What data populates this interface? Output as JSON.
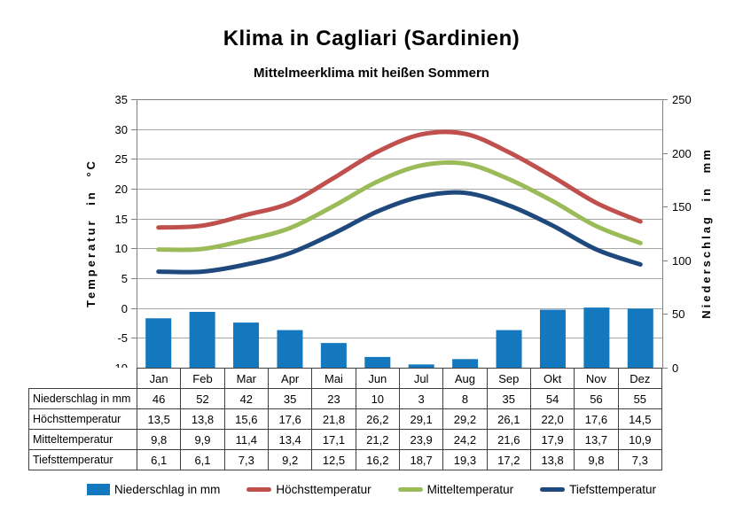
{
  "title": "Klima in Cagliari (Sardinien)",
  "subtitle": "Mittelmeerklima mit heißen Sommern",
  "axes": {
    "left_label": "Temperatur in °C",
    "right_label": "Niederschlag in mm",
    "left_ticks": [
      35,
      30,
      25,
      20,
      15,
      10,
      5,
      0,
      -5,
      -10
    ],
    "right_ticks": [
      250,
      200,
      150,
      100,
      50,
      0
    ]
  },
  "chart_data": {
    "type": "bar+line",
    "title": "Klima in Cagliari (Sardinien)",
    "subtitle": "Mittelmeerklima mit heißen Sommern",
    "categories": [
      "Jan",
      "Feb",
      "Mar",
      "Apr",
      "Mai",
      "Jun",
      "Jul",
      "Aug",
      "Sep",
      "Okt",
      "Nov",
      "Dez"
    ],
    "bar_series": {
      "name": "Niederschlag in mm",
      "axis": "right",
      "color": "#1478BE",
      "values": [
        46,
        52,
        42,
        35,
        23,
        10,
        3,
        8,
        35,
        54,
        56,
        55
      ]
    },
    "line_series": [
      {
        "name": "Höchsttemperatur",
        "color": "#C0504D",
        "values": [
          13.5,
          13.8,
          15.6,
          17.6,
          21.8,
          26.2,
          29.1,
          29.2,
          26.1,
          22.0,
          17.6,
          14.5
        ]
      },
      {
        "name": "Mitteltemperatur",
        "color": "#9BBB59",
        "values": [
          9.8,
          9.9,
          11.4,
          13.4,
          17.1,
          21.2,
          23.9,
          24.2,
          21.6,
          17.9,
          13.7,
          10.9
        ]
      },
      {
        "name": "Tiefsttemperatur",
        "color": "#1F497D",
        "values": [
          6.1,
          6.1,
          7.3,
          9.2,
          12.5,
          16.2,
          18.7,
          19.3,
          17.2,
          13.8,
          9.8,
          7.3
        ]
      }
    ],
    "ylabel_left": "Temperatur in °C",
    "ylabel_right": "Niederschlag in mm",
    "ylim_left": [
      -10,
      35
    ],
    "ylim_right": [
      0,
      250
    ],
    "grid": true,
    "legend_position": "bottom",
    "grid_color": "#A6A6A6",
    "border_color": "#808080"
  },
  "table": {
    "columns": [
      "Jan",
      "Feb",
      "Mar",
      "Apr",
      "Mai",
      "Jun",
      "Jul",
      "Aug",
      "Sep",
      "Okt",
      "Nov",
      "Dez"
    ],
    "rows": [
      {
        "label": "Niederschlag in mm",
        "values": [
          "46",
          "52",
          "42",
          "35",
          "23",
          "10",
          "3",
          "8",
          "35",
          "54",
          "56",
          "55"
        ]
      },
      {
        "label": "Höchsttemperatur",
        "values": [
          "13,5",
          "13,8",
          "15,6",
          "17,6",
          "21,8",
          "26,2",
          "29,1",
          "29,2",
          "26,1",
          "22,0",
          "17,6",
          "14,5"
        ]
      },
      {
        "label": "Mitteltemperatur",
        "values": [
          "9,8",
          "9,9",
          "11,4",
          "13,4",
          "17,1",
          "21,2",
          "23,9",
          "24,2",
          "21,6",
          "17,9",
          "13,7",
          "10,9"
        ]
      },
      {
        "label": "Tiefsttemperatur",
        "values": [
          "6,1",
          "6,1",
          "7,3",
          "9,2",
          "12,5",
          "16,2",
          "18,7",
          "19,3",
          "17,2",
          "13,8",
          "9,8",
          "7,3"
        ]
      }
    ]
  },
  "legend": {
    "items": [
      {
        "label": "Niederschlag in mm",
        "color": "#1478BE",
        "shape": "rect"
      },
      {
        "label": "Höchsttemperatur",
        "color": "#C0504D",
        "shape": "line"
      },
      {
        "label": "Mitteltemperatur",
        "color": "#9BBB59",
        "shape": "line"
      },
      {
        "label": "Tiefsttemperatur",
        "color": "#1F497D",
        "shape": "line"
      }
    ]
  }
}
